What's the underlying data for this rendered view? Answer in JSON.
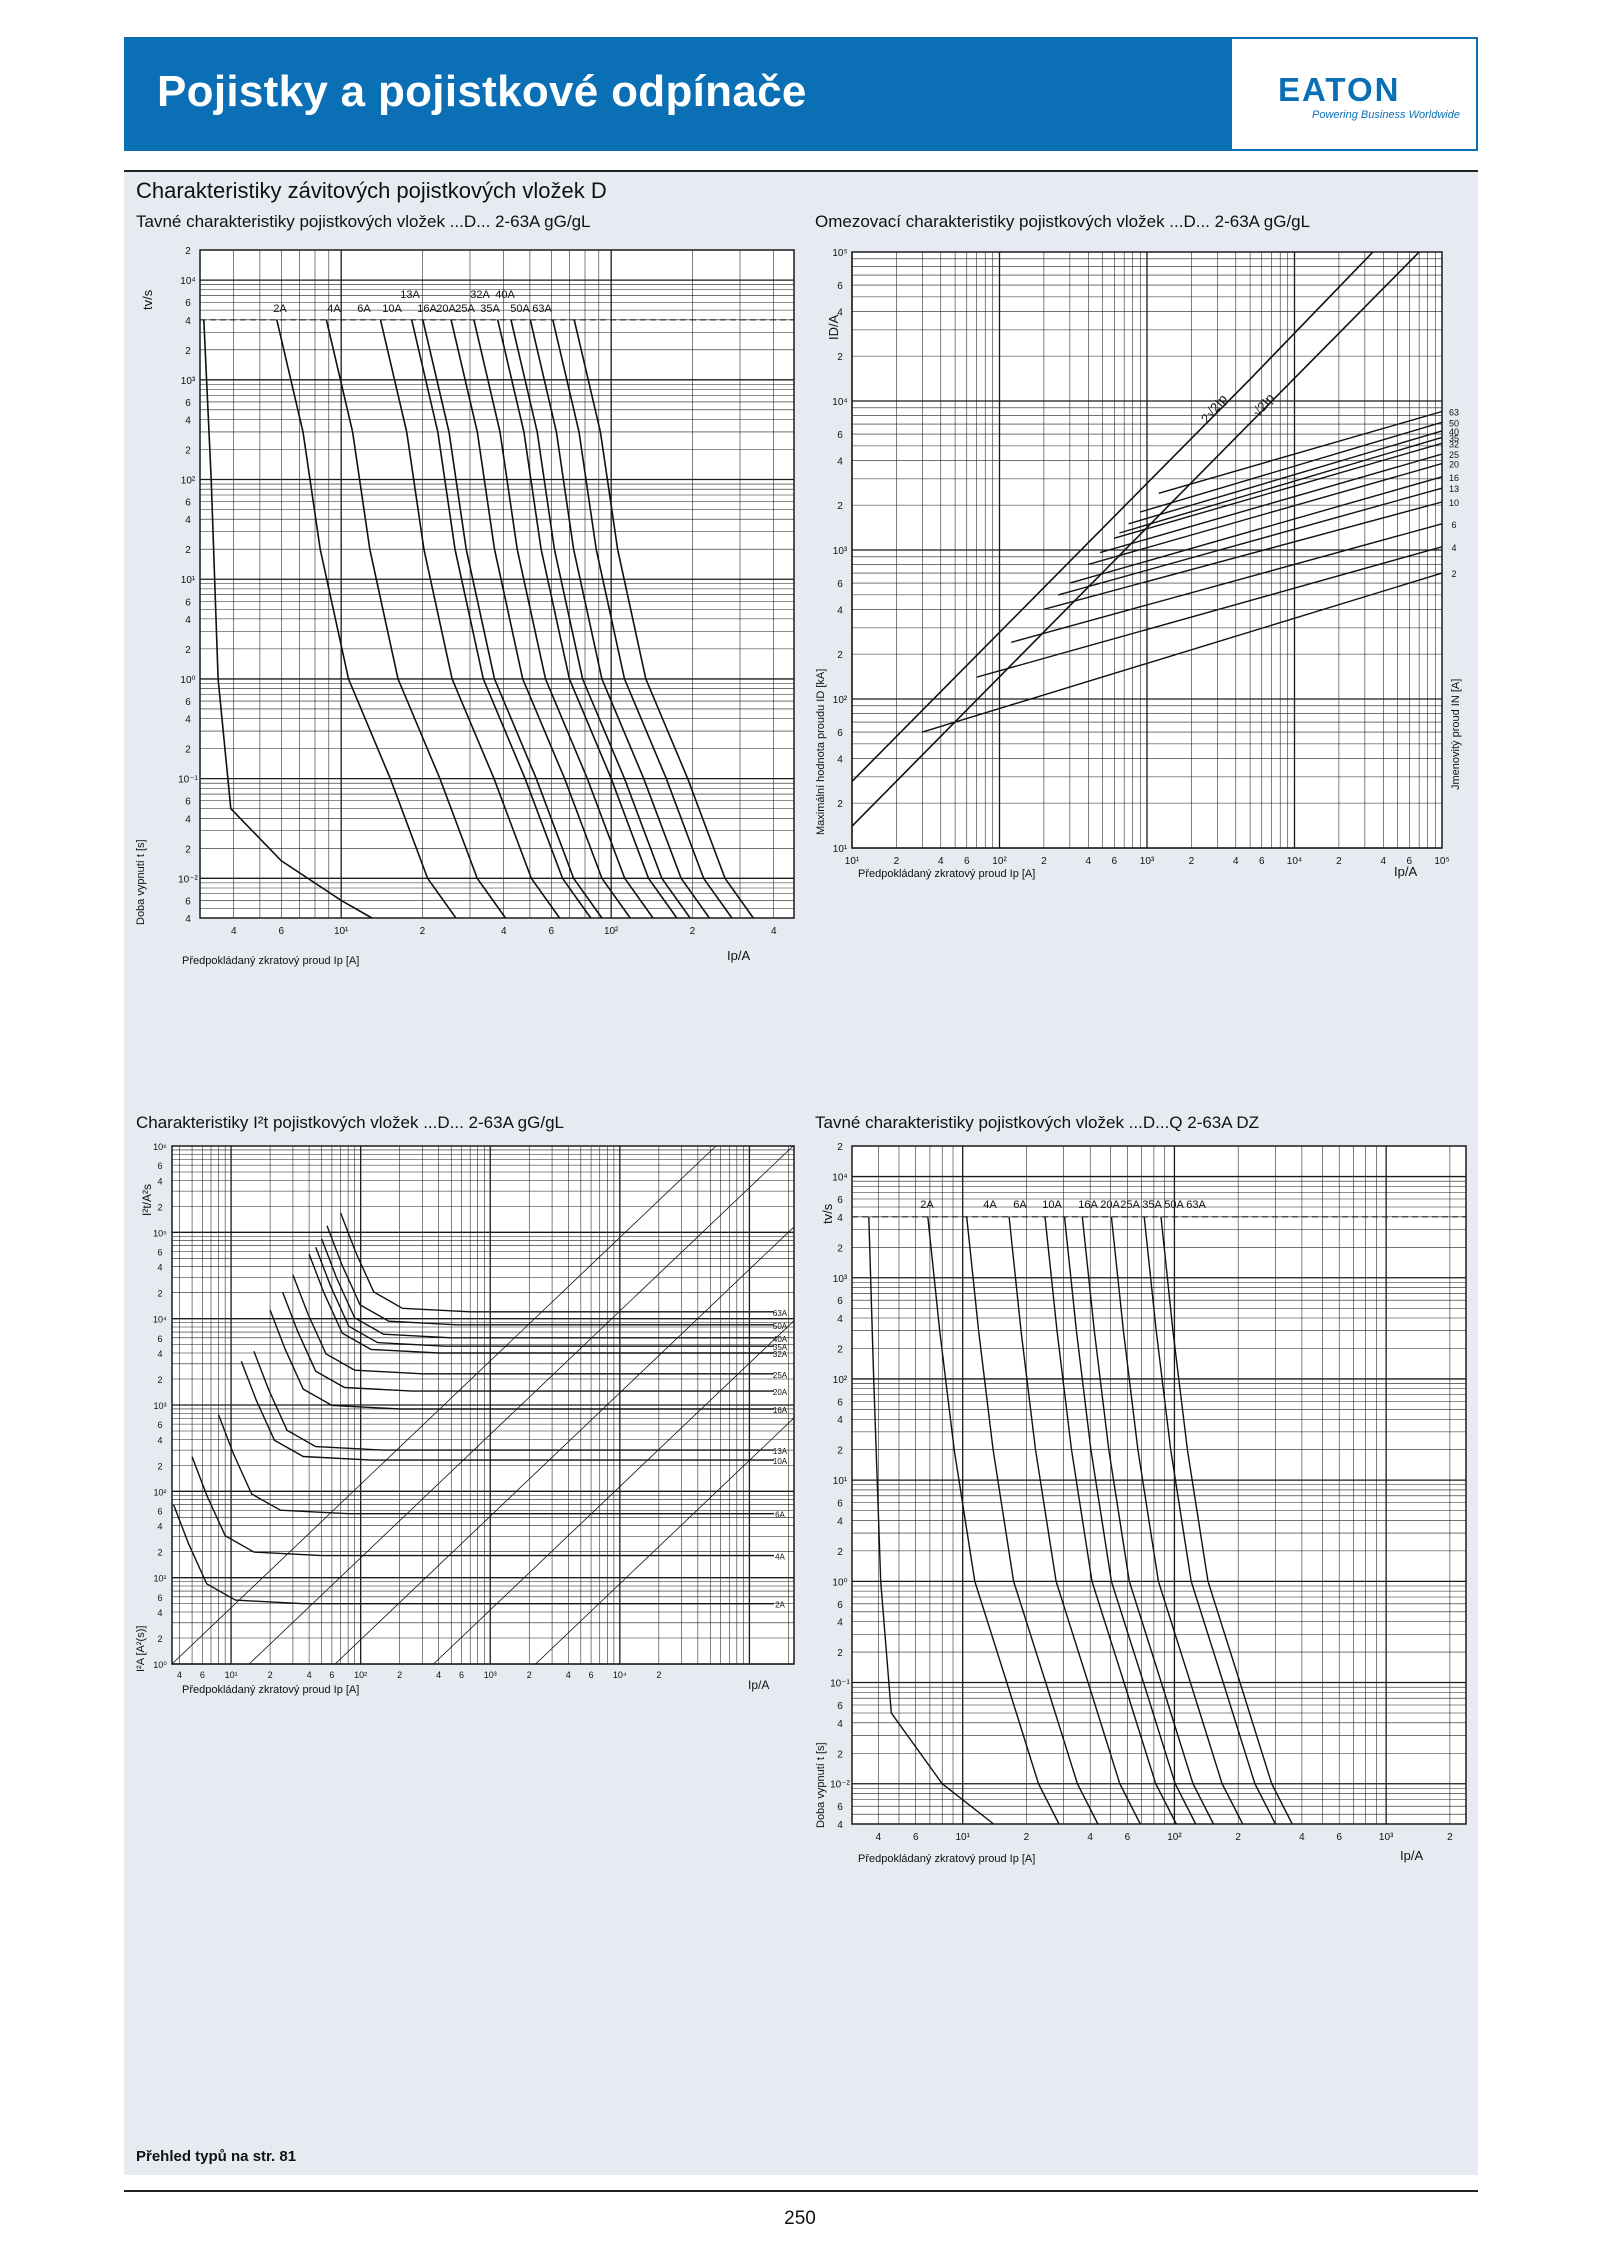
{
  "header": {
    "title": "Pojistky a pojistkové odpínače",
    "logo": "EATON",
    "logo_tagline": "Powering Business Worldwide",
    "brand_color": "#0a6fb4"
  },
  "section_title": "Charakteristiky závitových pojistkových vložek D",
  "charts": {
    "tl": {
      "caption": "Tavné charakteristiky pojistkových vložek ...D... 2-63A gG/gL",
      "ylabel": "Doba vypnutí t [s]",
      "ylabel_top": "tv/s",
      "xlabel": "Předpokládaný zkratový proud Ip [A]",
      "xlabel_right": "Ip/A",
      "ratings": [
        "2A",
        "4A",
        "6A",
        "10A",
        "13A",
        "16A",
        "20A",
        "25A",
        "32A",
        "35A",
        "40A",
        "50A",
        "63A"
      ]
    },
    "tr": {
      "caption": "Omezovací charakteristiky pojistkových vložek ...D... 2-63A gG/gL",
      "ylabel": "Maximální hodnota proudu ID [kA]",
      "ylabel_top": "ID/A",
      "ylabel_right": "Jmenovitý proud IN [A]",
      "xlabel": "Předpokládaný zkratový proud Ip [A]",
      "xlabel_right": "Ip/A",
      "right_labels": [
        "63",
        "50",
        "40",
        "35",
        "32",
        "25",
        "20",
        "16",
        "13",
        "10",
        "6",
        "4",
        "2"
      ],
      "diag_labels": [
        "2√2Ip",
        "√2Ip"
      ]
    },
    "bl": {
      "caption": "Charakteristiky I²t pojistkových vložek ...D... 2-63A gG/gL",
      "ylabel": "I²A [A²(s)]",
      "ylabel_top": "I²t/A²s",
      "xlabel": "Předpokládaný zkratový proud Ip [A]",
      "xlabel_right": "Ip/A",
      "right_labels": [
        "63A",
        "50A",
        "40A",
        "35A",
        "32A",
        "25A",
        "20A",
        "16A",
        "13A",
        "10A",
        "6A",
        "4A",
        "2A"
      ]
    },
    "br": {
      "caption": "Tavné charakteristiky pojistkových vložek ...D...Q 2-63A DZ",
      "ylabel": "Doba vypnutí t [s]",
      "ylabel_top": "tv/s",
      "xlabel": "Předpokládaný zkratový proud Ip [A]",
      "xlabel_right": "Ip/A",
      "ratings": [
        "2A",
        "4A",
        "6A",
        "10A",
        "16A",
        "20A",
        "25A",
        "35A",
        "50A",
        "63A"
      ]
    }
  },
  "footer_note": "Přehled typů na str. 81",
  "page_number": "250"
}
